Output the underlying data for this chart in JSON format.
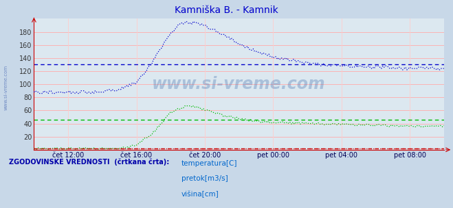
{
  "title": "Kamniška B. - Kamnik",
  "title_color": "#0000cc",
  "bg_color": "#c8d8e8",
  "plot_bg_color": "#dce8f0",
  "watermark": "www.si-vreme.com",
  "ylim": [
    0,
    200
  ],
  "ytick_vals": [
    20,
    40,
    60,
    80,
    100,
    120,
    140,
    160,
    180
  ],
  "xtick_labels": [
    "čet 12:00",
    "čet 16:00",
    "čet 20:00",
    "pet 00:00",
    "pet 04:00",
    "pet 08:00"
  ],
  "xtick_pos": [
    2,
    6,
    10,
    14,
    18,
    22
  ],
  "legend_title": "ZGODOVINSKE VREDNOSTI  (črtkana črta):",
  "legend_items": [
    {
      "label": "temperatura[C]",
      "color": "#cc0000"
    },
    {
      "label": "pretok[m3/s]",
      "color": "#00bb00"
    },
    {
      "label": "višina[cm]",
      "color": "#0000cc"
    }
  ],
  "hist_visina": 130,
  "hist_pretok": 46,
  "hist_temp": 2,
  "visina_color": "#0000cc",
  "pretok_color": "#00bb00",
  "temp_color": "#cc0000",
  "grid_h_color": "#ffaaaa",
  "grid_v_color": "#ffcccc",
  "axis_color": "#cc0000",
  "xlim": [
    0,
    24
  ]
}
